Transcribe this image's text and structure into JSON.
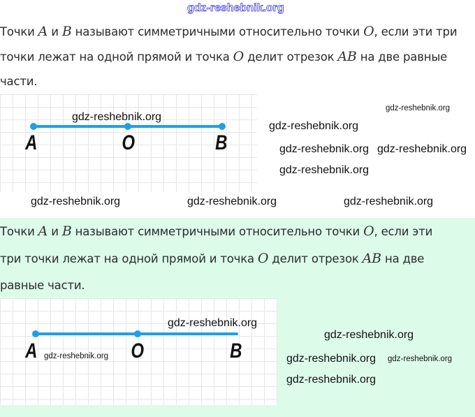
{
  "site_watermark": "gdz-reshebnik.org",
  "block1": {
    "lines": [
      [
        {
          "t": "Точки "
        },
        {
          "t": "A",
          "m": 1
        },
        {
          "t": " и "
        },
        {
          "t": "B",
          "m": 1
        },
        {
          "t": " называют симметричными относительно точки "
        },
        {
          "t": "O",
          "m": 1
        },
        {
          "t": ", если эти три"
        }
      ],
      [
        {
          "t": "точки лежат на одной прямой и точка "
        },
        {
          "t": "O",
          "m": 1
        },
        {
          "t": " делит отрезок "
        },
        {
          "t": "AB",
          "m": 1
        },
        {
          "t": " на две равные"
        }
      ],
      [
        {
          "t": "части."
        }
      ]
    ],
    "points": [
      "A",
      "O",
      "B"
    ]
  },
  "block2": {
    "lines": [
      [
        {
          "t": "Точки "
        },
        {
          "t": "A",
          "m": 1
        },
        {
          "t": " и "
        },
        {
          "t": "B",
          "m": 1
        },
        {
          "t": " называют симметричными относительно точки "
        },
        {
          "t": "O",
          "m": 1
        },
        {
          "t": ", если эти"
        }
      ],
      [
        {
          "t": "три точки лежат на одной прямой и точка "
        },
        {
          "t": "O",
          "m": 1
        },
        {
          "t": " делит отрезок "
        },
        {
          "t": "AB",
          "m": 1
        },
        {
          "t": " на две"
        }
      ],
      [
        {
          "t": "равные части."
        }
      ]
    ],
    "points": [
      "A",
      "O",
      "B"
    ],
    "background": "#dcfce9"
  },
  "segment_color": "#1f9fe6",
  "watermark": "gdz-reshebnik.org"
}
